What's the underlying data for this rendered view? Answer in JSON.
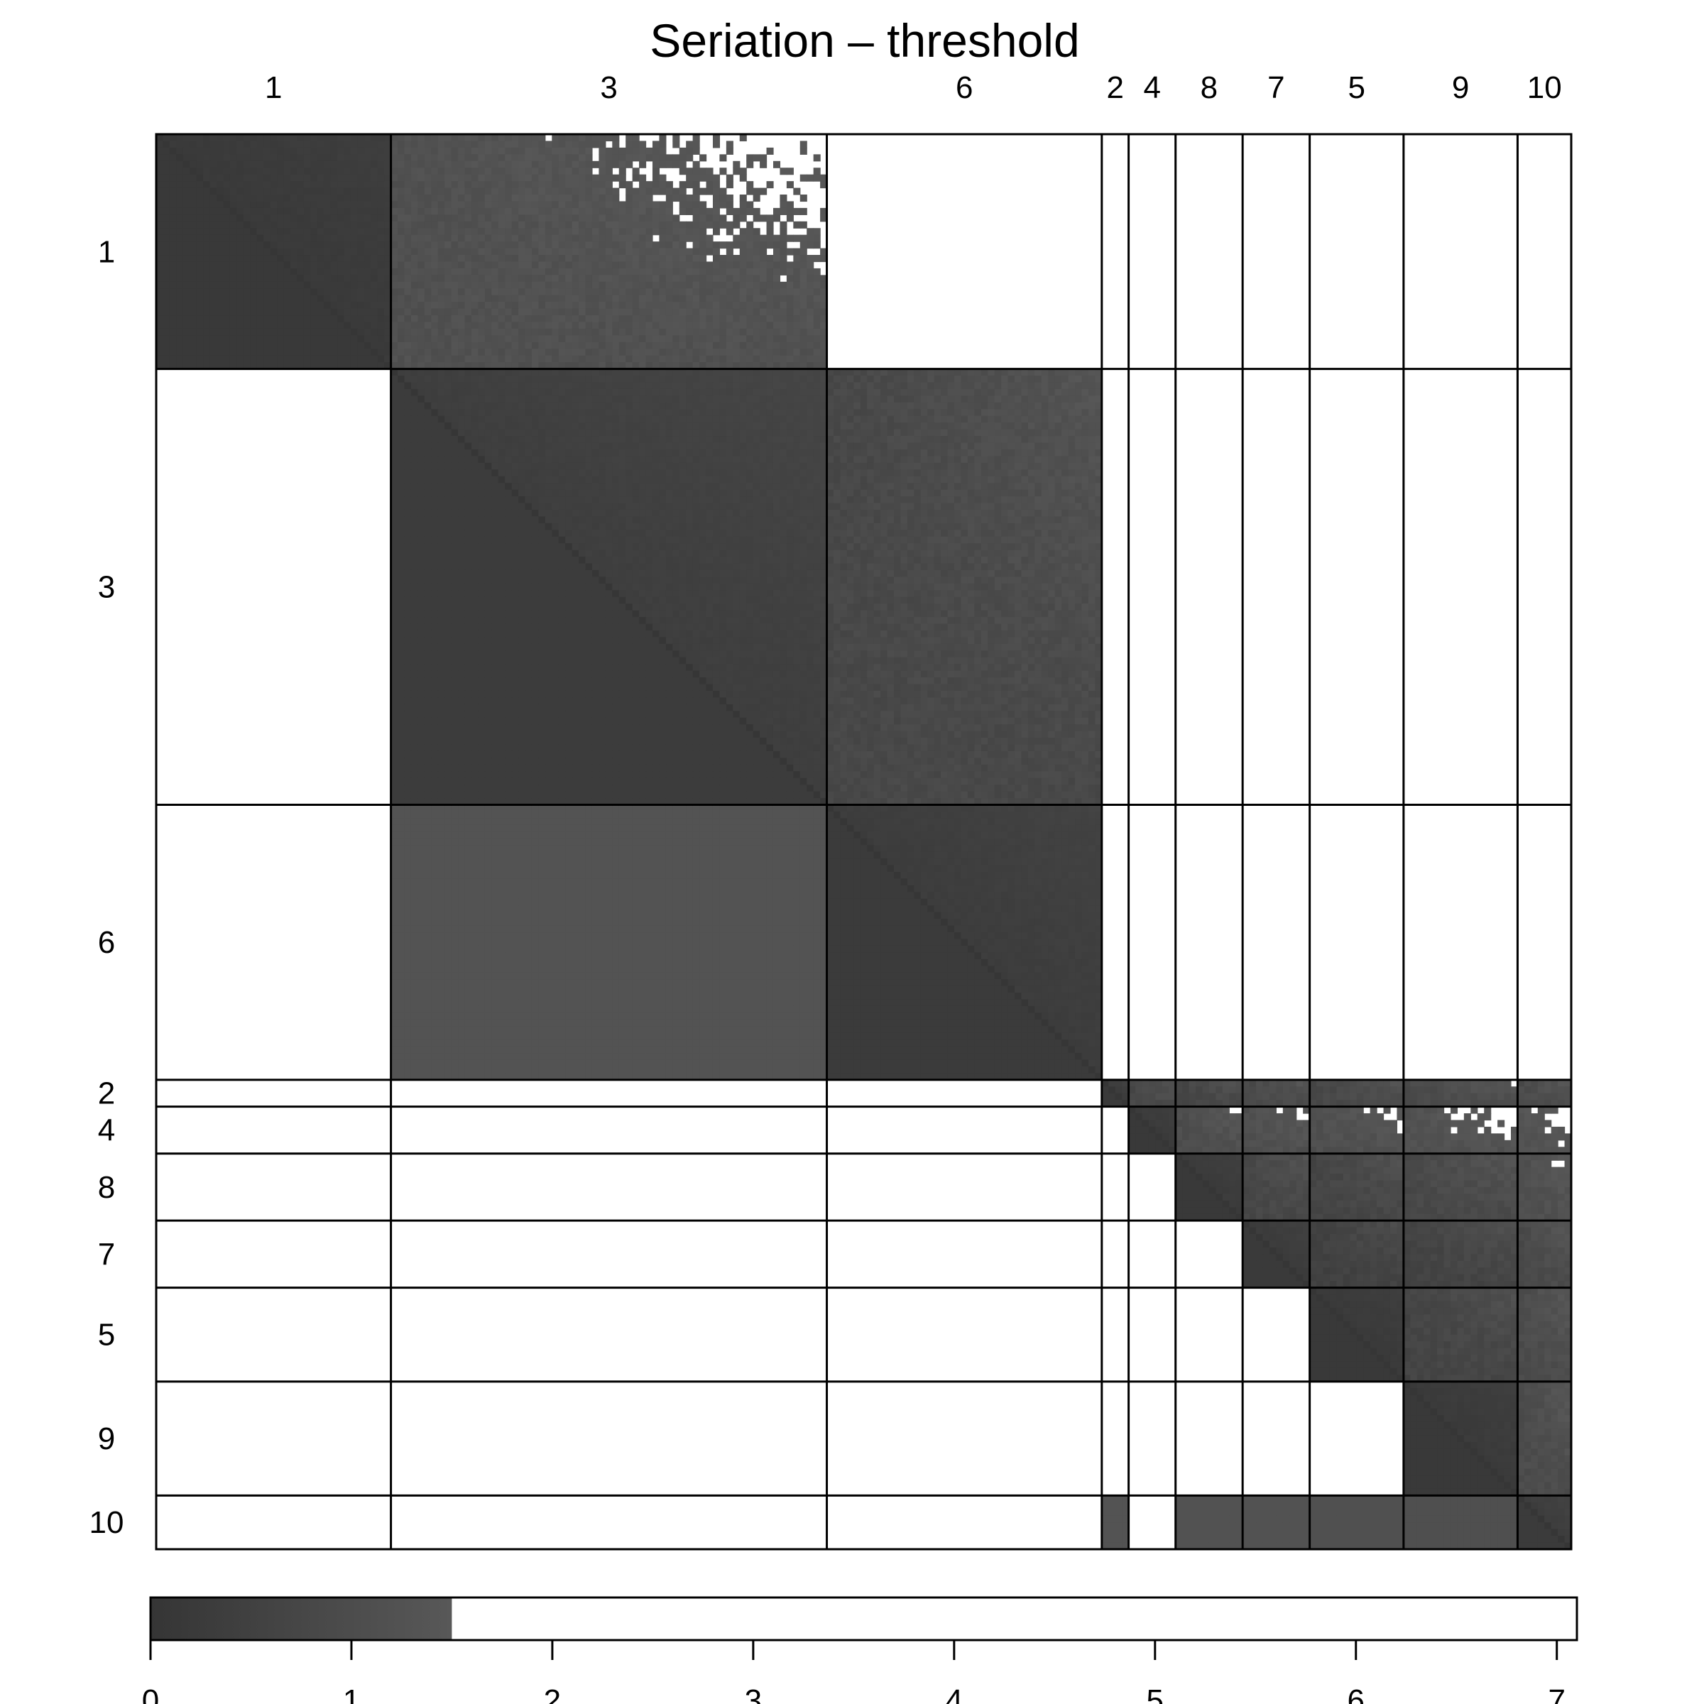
{
  "chart_data": {
    "type": "heatmap",
    "title": "Seriation – threshold",
    "clusters": [
      "1",
      "3",
      "6",
      "2",
      "4",
      "8",
      "7",
      "5",
      "9",
      "10"
    ],
    "cluster_sizes": [
      35,
      65,
      41,
      4,
      7,
      10,
      10,
      14,
      17,
      8
    ],
    "threshold": 1.5,
    "within_cluster_dissimilarity": {
      "1": 0.28,
      "3": 0.55,
      "6": 0.45,
      "2": 0.4,
      "4": 0.32,
      "8": 0.35,
      "7": 0.38,
      "5": 0.3,
      "9": 0.32,
      "10": 0.45
    },
    "between_cluster_dissimilarity": {
      "1-3": 1.25,
      "3-6": 0.9,
      "6-3": 1.28,
      "2-4": 0.9,
      "2-8": 0.8,
      "2-7": 0.95,
      "2-5": 0.88,
      "2-9": 1.0,
      "2-10": 1.05,
      "4-8": 1.12,
      "4-7": 1.18,
      "4-5": 1.2,
      "4-9": 1.3,
      "4-10": 1.35,
      "8-7": 0.85,
      "8-5": 0.78,
      "8-9": 0.92,
      "8-10": 1.2,
      "7-5": 0.6,
      "7-9": 0.7,
      "7-10": 1.0,
      "5-9": 0.75,
      "5-10": 1.05,
      "9-10": 1.05,
      "10-2": 1.3,
      "10-4": 2.0,
      "10-8": 1.25,
      "10-7": 1.25,
      "10-5": 1.15,
      "10-9": 1.1
    },
    "colorbar": {
      "ticks": [
        0,
        1,
        2,
        3,
        4,
        5,
        6,
        7
      ],
      "range": [
        0,
        7.1
      ],
      "gradient_end": 1.5,
      "colors": {
        "low": "#353535",
        "high": "#585858",
        "above_threshold": "#ffffff"
      }
    },
    "grid": false,
    "legend": "bottom"
  }
}
